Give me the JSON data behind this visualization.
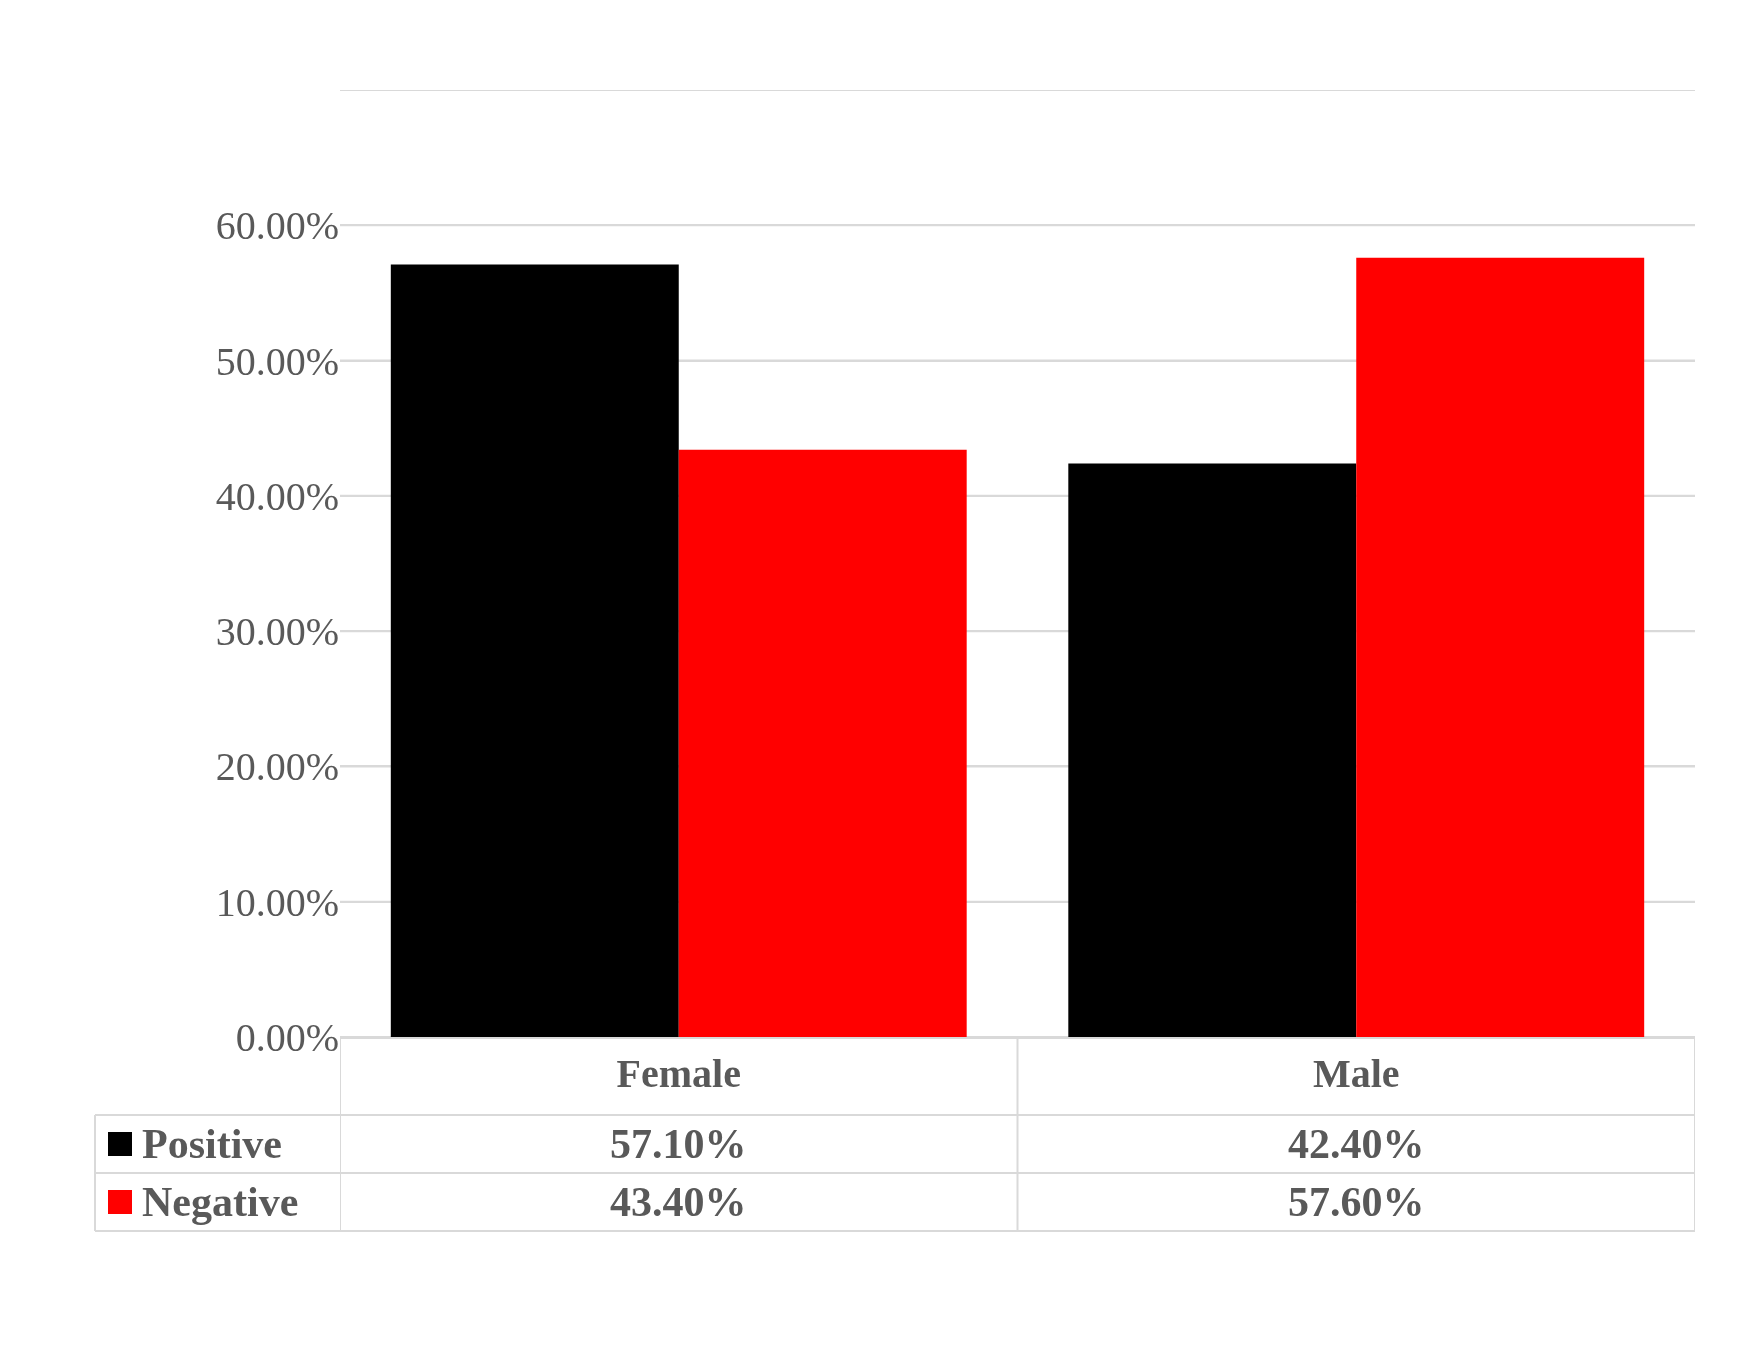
{
  "chart_data": {
    "type": "bar",
    "categories": [
      "Female",
      "Male"
    ],
    "series": [
      {
        "name": "Positive",
        "color": "#000000",
        "values": [
          57.1,
          42.4
        ],
        "value_labels": [
          "57.10%",
          "42.40%"
        ]
      },
      {
        "name": "Negative",
        "color": "#ff0000",
        "values": [
          43.4,
          57.6
        ],
        "value_labels": [
          "43.40%",
          "57.60%"
        ]
      }
    ],
    "ylim": [
      0,
      70
    ],
    "yticks": [
      {
        "value": 0,
        "label": "0.00%"
      },
      {
        "value": 10,
        "label": "10.00%"
      },
      {
        "value": 20,
        "label": "20.00%"
      },
      {
        "value": 30,
        "label": "30.00%"
      },
      {
        "value": 40,
        "label": "40.00%"
      },
      {
        "value": 50,
        "label": "50.00%"
      },
      {
        "value": 60,
        "label": "60.00%"
      },
      {
        "value": 70,
        "label": null
      }
    ],
    "grid": "y",
    "legend": "bottom"
  }
}
